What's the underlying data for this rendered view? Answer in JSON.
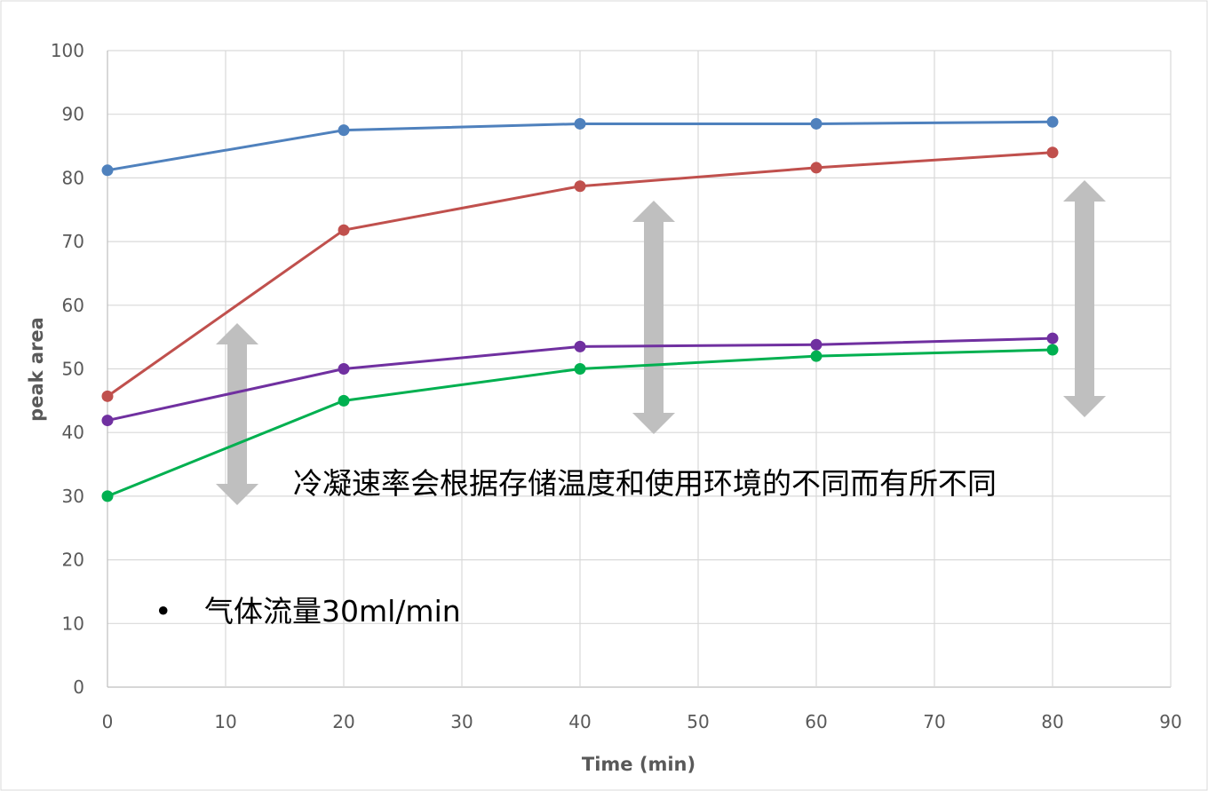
{
  "chart_data": {
    "type": "line",
    "xlabel": "Time (min)",
    "ylabel": "peak area",
    "xlim": [
      0,
      90
    ],
    "ylim": [
      0,
      100
    ],
    "xticks": [
      0,
      10,
      20,
      30,
      40,
      50,
      60,
      70,
      80,
      90
    ],
    "yticks": [
      0,
      10,
      20,
      30,
      40,
      50,
      60,
      70,
      80,
      90,
      100
    ],
    "grid": true,
    "x": [
      0,
      20,
      40,
      60,
      80
    ],
    "series": [
      {
        "color": "#4F81BD",
        "values": [
          81.2,
          87.5,
          88.5,
          88.5,
          88.8
        ]
      },
      {
        "color": "#C0504D",
        "values": [
          45.7,
          71.8,
          78.7,
          81.6,
          84.0
        ]
      },
      {
        "color": "#7030A0",
        "values": [
          41.9,
          50.0,
          53.5,
          53.8,
          54.8
        ]
      },
      {
        "color": "#00B050",
        "values": [
          30.0,
          45.0,
          50.0,
          52.0,
          53.0
        ]
      }
    ],
    "annotations": {
      "note": "冷凝速率会根据存储温度和使用环境的不同而有所不同",
      "bullet": "•",
      "bullet_text": "气体流量30ml/min"
    }
  }
}
